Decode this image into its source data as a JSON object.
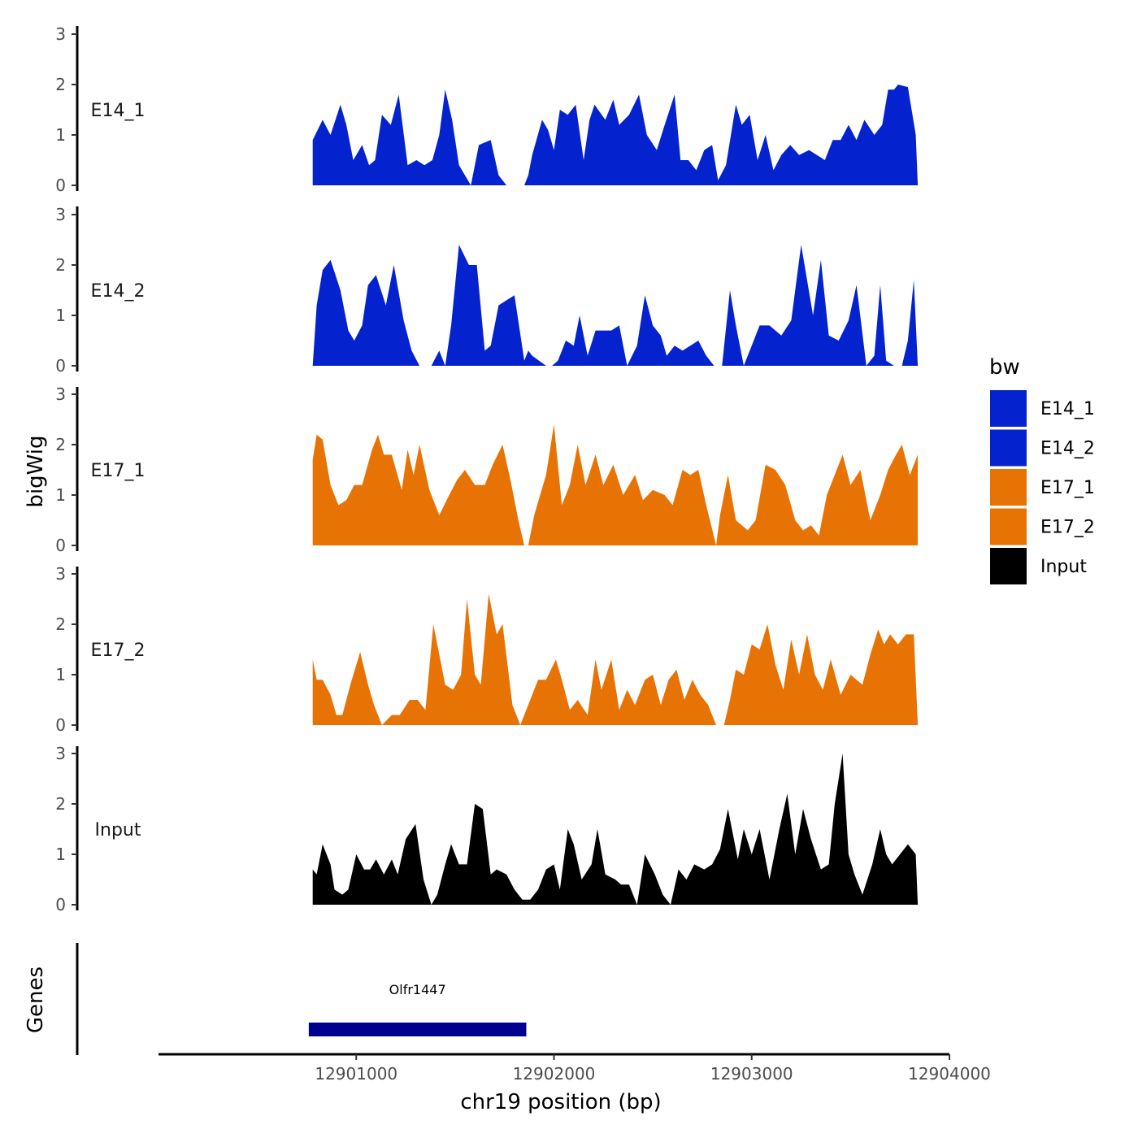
{
  "chart_data": {
    "type": "area",
    "title": "",
    "xlabel": "chr19 position (bp)",
    "ylabel": "bigWig",
    "genes_label": "Genes",
    "xlim": [
      12900000,
      12904000
    ],
    "x_ticks": [
      12901000,
      12902000,
      12903000,
      12904000
    ],
    "x_tick_labels": [
      "12901000",
      "12902000",
      "12903000",
      "12904000"
    ],
    "ylim": [
      0,
      3
    ],
    "y_ticks": [
      0,
      1,
      2,
      3
    ],
    "y_tick_labels": [
      "0",
      "1",
      "2",
      "3"
    ],
    "legend": {
      "title": "bw",
      "position": "right",
      "entries": [
        {
          "name": "E14_1",
          "color": "#0522CF"
        },
        {
          "name": "E14_2",
          "color": "#0522CF"
        },
        {
          "name": "E17_1",
          "color": "#E87305"
        },
        {
          "name": "E17_2",
          "color": "#E87305"
        },
        {
          "name": "Input",
          "color": "#000000"
        }
      ]
    },
    "series": [
      {
        "name": "E14_1",
        "color": "#0522CF",
        "x": [
          12900780,
          12900830,
          12900870,
          12900920,
          12900950,
          12900985,
          12901030,
          12901065,
          12901095,
          12901130,
          12901175,
          12901215,
          12901260,
          12901305,
          12901345,
          12901385,
          12901420,
          12901450,
          12901485,
          12901520,
          12901550,
          12901580,
          12901620,
          12901680,
          12901720,
          12901760,
          12901800,
          12901850,
          12901870,
          12901890,
          12901940,
          12901970,
          12902000,
          12902030,
          12902070,
          12902110,
          12902150,
          12902180,
          12902205,
          12902260,
          12902300,
          12902330,
          12902380,
          12902430,
          12902470,
          12902520,
          12902560,
          12902610,
          12902640,
          12902680,
          12902720,
          12902760,
          12902800,
          12902830,
          12902870,
          12902920,
          12902950,
          12902990,
          12903030,
          12903070,
          12903110,
          12903150,
          12903195,
          12903240,
          12903290,
          12903330,
          12903370,
          12903410,
          12903450,
          12903490,
          12903530,
          12903570,
          12903620,
          12903660,
          12903690,
          12903720,
          12903740,
          12903790,
          12903830,
          12903840
        ],
        "y": [
          0.9,
          1.3,
          1.0,
          1.6,
          1.2,
          0.5,
          0.8,
          0.4,
          0.5,
          1.4,
          1.2,
          1.8,
          0.4,
          0.5,
          0.4,
          0.5,
          1.0,
          1.9,
          1.3,
          0.4,
          0.2,
          0.0,
          0.8,
          0.9,
          0.2,
          0.0,
          0.0,
          0.0,
          0.2,
          0.6,
          1.3,
          1.1,
          0.7,
          1.5,
          1.4,
          1.6,
          0.5,
          1.3,
          1.6,
          1.3,
          1.7,
          1.2,
          1.4,
          1.8,
          1.0,
          0.7,
          1.2,
          1.8,
          0.5,
          0.5,
          0.3,
          0.7,
          0.8,
          0.1,
          0.4,
          1.6,
          1.2,
          1.4,
          0.5,
          1.0,
          0.3,
          0.6,
          0.8,
          0.6,
          0.7,
          0.6,
          0.5,
          0.9,
          0.9,
          1.2,
          0.9,
          1.3,
          1.0,
          1.2,
          1.9,
          1.9,
          2.0,
          1.95,
          1.0,
          0.0
        ]
      },
      {
        "name": "E14_2",
        "color": "#0522CF",
        "x": [
          12900780,
          12900800,
          12900830,
          12900870,
          12900920,
          12900960,
          12900990,
          12901030,
          12901060,
          12901100,
          12901150,
          12901190,
          12901240,
          12901280,
          12901320,
          12901380,
          12901420,
          12901450,
          12901480,
          12901520,
          12901570,
          12901610,
          12901650,
          12901680,
          12901720,
          12901760,
          12901800,
          12901850,
          12901870,
          12901890,
          12901960,
          12901990,
          12902020,
          12902060,
          12902100,
          12902130,
          12902170,
          12902210,
          12902240,
          12902290,
          12902330,
          12902370,
          12902420,
          12902460,
          12902500,
          12902540,
          12902570,
          12902610,
          12902650,
          12902690,
          12902730,
          12902770,
          12902810,
          12902850,
          12902890,
          12902920,
          12902960,
          12903000,
          12903040,
          12903090,
          12903150,
          12903200,
          12903250,
          12903310,
          12903350,
          12903390,
          12903440,
          12903490,
          12903530,
          12903580,
          12903620,
          12903650,
          12903680,
          12903720,
          12903760,
          12903790,
          12903820,
          12903840
        ],
        "y": [
          0.0,
          1.2,
          1.9,
          2.1,
          1.5,
          0.7,
          0.5,
          0.8,
          1.6,
          1.8,
          1.2,
          2.0,
          0.9,
          0.3,
          0.0,
          0.0,
          0.3,
          0.0,
          0.8,
          2.4,
          2.0,
          2.0,
          0.3,
          0.4,
          1.2,
          1.3,
          1.4,
          0.1,
          0.3,
          0.2,
          0.0,
          0.0,
          0.1,
          0.5,
          0.4,
          1.0,
          0.2,
          0.7,
          0.7,
          0.7,
          0.8,
          0.0,
          0.4,
          1.4,
          0.8,
          0.6,
          0.2,
          0.4,
          0.3,
          0.4,
          0.5,
          0.2,
          0.0,
          0.0,
          1.5,
          0.8,
          0.0,
          0.4,
          0.8,
          0.8,
          0.6,
          0.9,
          2.4,
          1.0,
          2.1,
          0.6,
          0.5,
          0.9,
          1.6,
          0.0,
          0.2,
          1.6,
          0.1,
          0.0,
          0.0,
          0.5,
          1.7,
          0.0
        ]
      },
      {
        "name": "E17_1",
        "color": "#E87305",
        "x": [
          12900780,
          12900800,
          12900830,
          12900870,
          12900910,
          12900950,
          12900990,
          12901030,
          12901080,
          12901110,
          12901140,
          12901180,
          12901230,
          12901260,
          12901290,
          12901320,
          12901370,
          12901420,
          12901470,
          12901510,
          12901550,
          12901600,
          12901650,
          12901690,
          12901740,
          12901780,
          12901820,
          12901850,
          12901870,
          12901900,
          12901960,
          12902000,
          12902040,
          12902080,
          12902120,
          12902160,
          12902210,
          12902250,
          12902300,
          12902350,
          12902410,
          12902450,
          12902500,
          12902560,
          12902600,
          12902650,
          12902690,
          12902730,
          12902770,
          12902820,
          12902840,
          12902880,
          12902920,
          12902980,
          12903020,
          12903070,
          12903120,
          12903170,
          12903220,
          12903260,
          12903300,
          12903340,
          12903380,
          12903420,
          12903460,
          12903500,
          12903550,
          12903600,
          12903650,
          12903690,
          12903730,
          12903760,
          12903800,
          12903840
        ],
        "y": [
          1.7,
          2.2,
          2.1,
          1.2,
          0.8,
          0.9,
          1.2,
          1.2,
          1.9,
          2.2,
          1.8,
          1.8,
          1.1,
          1.9,
          1.4,
          2.0,
          1.1,
          0.6,
          1.0,
          1.3,
          1.5,
          1.2,
          1.2,
          1.6,
          2.0,
          1.3,
          0.5,
          0.0,
          0.0,
          0.6,
          1.4,
          2.4,
          0.8,
          1.2,
          2.0,
          1.2,
          1.8,
          1.2,
          1.6,
          1.0,
          1.4,
          0.9,
          1.1,
          1.0,
          0.8,
          1.5,
          1.4,
          1.5,
          0.8,
          0.0,
          0.6,
          1.4,
          0.5,
          0.3,
          0.5,
          1.6,
          1.5,
          1.2,
          0.5,
          0.3,
          0.4,
          0.2,
          1.0,
          1.4,
          1.8,
          1.2,
          1.5,
          0.5,
          1.0,
          1.5,
          1.8,
          2.0,
          1.4,
          1.8
        ],
        "_note": "values read from gridlines"
      },
      {
        "name": "E17_2",
        "color": "#E87305",
        "x": [
          12900780,
          12900800,
          12900830,
          12900870,
          12900900,
          12900930,
          12900970,
          12901020,
          12901060,
          12901090,
          12901130,
          12901180,
          12901220,
          12901270,
          12901310,
          12901350,
          12901390,
          12901420,
          12901450,
          12901490,
          12901530,
          12901560,
          12901600,
          12901630,
          12901670,
          12901710,
          12901740,
          12901790,
          12901830,
          12901880,
          12901920,
          12901960,
          12902010,
          12902040,
          12902080,
          12902120,
          12902170,
          12902210,
          12902240,
          12902290,
          12902330,
          12902370,
          12902410,
          12902460,
          12902500,
          12902540,
          12902580,
          12902620,
          12902660,
          12902700,
          12902740,
          12902780,
          12902820,
          12902860,
          12902890,
          12902920,
          12902960,
          12903000,
          12903040,
          12903080,
          12903120,
          12903160,
          12903200,
          12903240,
          12903280,
          12903320,
          12903360,
          12903400,
          12903450,
          12903500,
          12903560,
          12903600,
          12903640,
          12903670,
          12903700,
          12903740,
          12903780,
          12903820,
          12903840
        ],
        "y": [
          1.3,
          0.9,
          0.9,
          0.6,
          0.2,
          0.2,
          0.8,
          1.45,
          0.8,
          0.4,
          0.0,
          0.2,
          0.2,
          0.5,
          0.5,
          0.3,
          2.0,
          1.4,
          0.8,
          0.7,
          1.0,
          2.5,
          1.0,
          0.8,
          2.6,
          1.8,
          2.0,
          0.4,
          0.0,
          0.5,
          0.9,
          0.9,
          1.3,
          0.9,
          0.3,
          0.5,
          0.2,
          1.3,
          0.7,
          1.3,
          0.3,
          0.7,
          0.4,
          0.9,
          1.0,
          0.4,
          0.9,
          1.1,
          0.5,
          0.9,
          0.6,
          0.4,
          0.0,
          0.0,
          0.5,
          1.1,
          1.0,
          1.6,
          1.5,
          2.0,
          1.2,
          0.7,
          1.7,
          1.0,
          1.8,
          1.0,
          0.7,
          1.3,
          0.6,
          1.0,
          0.8,
          1.4,
          1.9,
          1.6,
          1.8,
          1.6,
          1.8,
          1.8,
          0.0
        ]
      },
      {
        "name": "Input",
        "color": "#000000",
        "x": [
          12900780,
          12900800,
          12900830,
          12900870,
          12900890,
          12900930,
          12900960,
          12901000,
          12901040,
          12901070,
          12901100,
          12901140,
          12901180,
          12901210,
          12901250,
          12901300,
          12901340,
          12901380,
          12901410,
          12901450,
          12901480,
          12901520,
          12901560,
          12901600,
          12901640,
          12901680,
          12901710,
          12901760,
          12901800,
          12901840,
          12901880,
          12901920,
          12901960,
          12902000,
          12902030,
          12902070,
          12902100,
          12902140,
          12902190,
          12902220,
          12902260,
          12902310,
          12902340,
          12902380,
          12902420,
          12902460,
          12902510,
          12902550,
          12902590,
          12902630,
          12902670,
          12902710,
          12902760,
          12902800,
          12902840,
          12902880,
          12902930,
          12902960,
          12903000,
          12903040,
          12903090,
          12903140,
          12903180,
          12903220,
          12903260,
          12903300,
          12903350,
          12903390,
          12903420,
          12903460,
          12903490,
          12903520,
          12903560,
          12903610,
          12903650,
          12903680,
          12903710,
          12903750,
          12903790,
          12903830,
          12903840
        ],
        "y": [
          0.7,
          0.6,
          1.2,
          0.8,
          0.3,
          0.2,
          0.3,
          1.0,
          0.7,
          0.7,
          0.9,
          0.6,
          0.9,
          0.6,
          1.3,
          1.6,
          0.5,
          0.0,
          0.2,
          0.8,
          1.2,
          0.8,
          0.8,
          2.0,
          1.9,
          0.6,
          0.7,
          0.6,
          0.3,
          0.1,
          0.1,
          0.3,
          0.7,
          0.8,
          0.3,
          1.5,
          1.2,
          0.5,
          0.8,
          1.5,
          0.6,
          0.5,
          0.4,
          0.4,
          0.0,
          1.0,
          0.6,
          0.2,
          0.0,
          0.7,
          0.5,
          0.8,
          0.7,
          0.8,
          1.1,
          1.9,
          0.9,
          1.5,
          1.0,
          1.5,
          0.5,
          1.5,
          2.2,
          1.0,
          1.9,
          1.3,
          0.7,
          0.8,
          2.0,
          3.0,
          1.0,
          0.6,
          0.2,
          0.8,
          1.5,
          1.0,
          0.8,
          1.0,
          1.2,
          1.0,
          0.0
        ]
      }
    ],
    "genes": [
      {
        "name": "Olfr1447",
        "start": 12900760,
        "end": 12901860,
        "color": "#000090"
      }
    ]
  }
}
